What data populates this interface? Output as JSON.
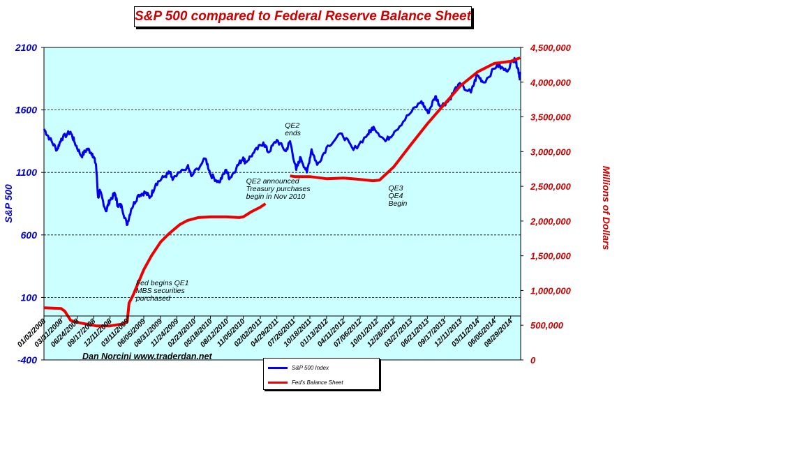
{
  "chart_data": {
    "type": "line",
    "title": "S&P 500 compared to Federal Reserve Balance Sheet",
    "ylabel_left": "S&P 500",
    "ylabel_right": "Millions of Dollars",
    "ylim_left": [
      -400,
      2100
    ],
    "ylim_right": [
      0,
      4500000
    ],
    "left_ticks": [
      "2100",
      "1600",
      "1100",
      "600",
      "100",
      "-400"
    ],
    "right_ticks": [
      "4,500,000",
      "4,000,000",
      "3,500,000",
      "3,000,000",
      "2,500,000",
      "2,000,000",
      "1,500,000",
      "1,000,000",
      "500,000",
      "0"
    ],
    "gridlines_left": [
      1600,
      1100,
      600,
      100
    ],
    "x_tick_labels": [
      "01/02/2008",
      "03/31/2008",
      "06/24/2008",
      "09/17/2008",
      "12/11/2008",
      "03/11/2009",
      "06/05/2009",
      "08/31/2009",
      "11/24/2009",
      "02/23/2010",
      "05/18/2010",
      "08/12/2010",
      "11/05/2010",
      "02/02/2011",
      "04/29/2011",
      "07/26/2011",
      "10/18/2011",
      "01/13/2012",
      "04/11/2012",
      "07/06/2012",
      "10/01/2012",
      "12/28/2012",
      "03/27/2013",
      "06/21/2013",
      "09/17/2013",
      "12/11/2013",
      "03/11/2014",
      "06/05/2014",
      "08/29/2014"
    ],
    "background_color": "#ccffff",
    "series": [
      {
        "name": "S&P 500 Index",
        "color": "#0000ee",
        "axis": "left",
        "x": [
          "2008-01-02",
          "2008-02-01",
          "2008-03-10",
          "2008-04-01",
          "2008-05-19",
          "2008-06-10",
          "2008-07-15",
          "2008-08-15",
          "2008-09-10",
          "2008-09-29",
          "2008-10-10",
          "2008-10-20",
          "2008-11-20",
          "2008-12-10",
          "2009-01-06",
          "2009-01-20",
          "2009-02-10",
          "2009-03-09",
          "2009-04-01",
          "2009-05-08",
          "2009-06-12",
          "2009-07-08",
          "2009-08-07",
          "2009-09-23",
          "2009-10-19",
          "2009-11-02",
          "2010-01-19",
          "2010-02-08",
          "2010-04-23",
          "2010-05-20",
          "2010-07-02",
          "2010-08-09",
          "2010-08-26",
          "2010-10-01",
          "2010-11-05",
          "2010-11-16",
          "2010-12-31",
          "2011-02-18",
          "2011-03-16",
          "2011-04-29",
          "2011-06-15",
          "2011-07-07",
          "2011-08-08",
          "2011-08-31",
          "2011-10-03",
          "2011-10-27",
          "2011-11-25",
          "2012-01-20",
          "2012-04-02",
          "2012-06-01",
          "2012-08-15",
          "2012-09-14",
          "2012-11-15",
          "2012-12-31",
          "2013-03-15",
          "2013-05-21",
          "2013-06-24",
          "2013-08-02",
          "2013-08-27",
          "2013-10-08",
          "2013-11-29",
          "2014-02-03",
          "2014-03-07",
          "2014-04-11",
          "2014-06-20",
          "2014-08-07",
          "2014-09-18",
          "2014-10-06",
          "2014-10-15",
          "2014-10-17"
        ],
        "values": [
          1447,
          1370,
          1280,
          1370,
          1425,
          1340,
          1230,
          1290,
          1250,
          1165,
          900,
          950,
          790,
          880,
          930,
          840,
          830,
          680,
          810,
          920,
          940,
          900,
          1010,
          1070,
          1100,
          1040,
          1150,
          1070,
          1210,
          1080,
          1020,
          1120,
          1050,
          1140,
          1220,
          1180,
          1258,
          1340,
          1260,
          1360,
          1270,
          1350,
          1120,
          1220,
          1100,
          1285,
          1160,
          1315,
          1410,
          1280,
          1405,
          1465,
          1350,
          1426,
          1560,
          1670,
          1575,
          1710,
          1630,
          1670,
          1805,
          1740,
          1880,
          1820,
          1960,
          1910,
          2015,
          1935,
          1860,
          1885
        ]
      },
      {
        "name": "Fed's Balance Sheet",
        "color": "#ee0000",
        "axis": "right",
        "x": [
          "2008-01-02",
          "2008-03-31",
          "2008-04-20",
          "2008-05-20",
          "2008-06-24",
          "2008-09-10",
          "2008-10-01",
          "2008-12-11",
          "2009-02-20",
          "2009-03-11",
          "2009-03-20",
          "2009-04-10",
          "2009-05-01",
          "2009-06-05",
          "2009-07-15",
          "2009-09-01",
          "2009-10-15",
          "2009-12-10",
          "2010-01-20",
          "2010-03-15",
          "2010-05-18",
          "2010-08-12",
          "2010-10-15",
          "2010-11-05",
          "2010-12-15",
          "2011-02-02",
          "2011-03-01"
        ],
        "values": [
          750000,
          740000,
          700000,
          570000,
          540000,
          500000,
          490000,
          490000,
          520000,
          560000,
          820000,
          930000,
          1070000,
          1300000,
          1500000,
          1700000,
          1820000,
          1950000,
          2010000,
          2050000,
          2060000,
          2060000,
          2050000,
          2060000,
          2130000,
          2200000,
          2250000
        ]
      },
      {
        "name": "Fed's Balance Sheet",
        "color": "#ee0000",
        "axis": "right",
        "x": [
          "2011-07-07",
          "2011-08-01",
          "2011-10-18",
          "2012-01-13",
          "2012-04-11",
          "2012-07-06",
          "2012-09-10",
          "2012-10-15",
          "2012-12-28",
          "2013-03-27",
          "2013-06-21",
          "2013-09-17",
          "2013-12-11",
          "2014-03-11",
          "2014-06-05",
          "2014-08-29",
          "2014-10-17"
        ],
        "values": [
          2650000,
          2640000,
          2640000,
          2610000,
          2620000,
          2600000,
          2580000,
          2590000,
          2780000,
          3100000,
          3400000,
          3680000,
          3950000,
          4150000,
          4270000,
          4300000,
          4350000
        ]
      }
    ],
    "annotations": [
      {
        "lines": [
          "Fed begins QE1",
          "MBS securities",
          "purchased"
        ],
        "date": "2009-04-25"
      },
      {
        "lines": [
          "QE2 announced",
          "Treasury purchases",
          "begin in Nov 2010"
        ],
        "date": "2010-11-20"
      },
      {
        "lines": [
          "QE2",
          "ends"
        ],
        "date": "2011-06-10"
      },
      {
        "lines": [
          "QE3",
          "QE4",
          "Begin"
        ],
        "date": "2012-11-30"
      }
    ],
    "credit": "Dan  Norcini  www.traderdan.net",
    "legend_position": "bottom"
  }
}
